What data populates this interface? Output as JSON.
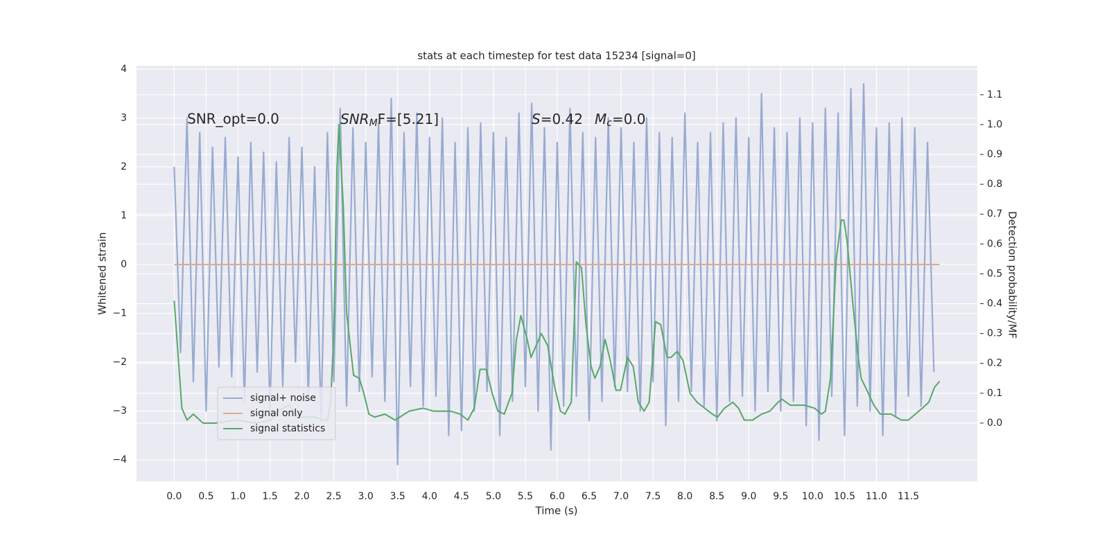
{
  "chart_data": {
    "type": "line",
    "title": "stats at each timestep for test data 15234 [signal=0]",
    "x_label": "Time (s)",
    "y_label": "Whitened strain",
    "y2_label": "Detection probability/MF",
    "annotations": [
      {
        "text": "SNR_opt=0.0"
      },
      {
        "base": "SNR",
        "sub": "M",
        "rest": "F=[5.21]"
      },
      {
        "base": "S",
        "rest": "=0.42"
      },
      {
        "base": "M",
        "sub": "c",
        "rest": "=0.0"
      }
    ],
    "xlim": [
      -0.59,
      12.58
    ],
    "xticks": [
      {
        "value": 0,
        "label": "0.0"
      },
      0.5,
      {
        "value": 1,
        "label": "1.0"
      },
      1.5,
      {
        "value": 2,
        "label": "2.0"
      },
      2.5,
      {
        "value": 3,
        "label": "3.0"
      },
      3.5,
      {
        "value": 4,
        "label": "4.0"
      },
      4.5,
      {
        "value": 5,
        "label": "5.0"
      },
      5.5,
      {
        "value": 6,
        "label": "6.0"
      },
      6.5,
      {
        "value": 7,
        "label": "7.0"
      },
      7.5,
      {
        "value": 8,
        "label": "8.0"
      },
      8.5,
      {
        "value": 9,
        "label": "9.0"
      },
      9.5,
      {
        "value": 10,
        "label": "10.0"
      },
      10.5,
      {
        "value": 11,
        "label": "11.0"
      },
      11.5
    ],
    "ylim": [
      -4.44,
      4.07
    ],
    "yticks": [
      {
        "value": -4,
        "label": "−4"
      },
      {
        "value": -3,
        "label": "−3"
      },
      {
        "value": -2,
        "label": "−2"
      },
      {
        "value": -1,
        "label": "−1"
      },
      0,
      1,
      2,
      3,
      4
    ],
    "y2lim": [
      -0.195,
      1.197
    ],
    "y2ticks": [
      {
        "value": 0,
        "label": "0.0"
      },
      0.1,
      0.2,
      0.3,
      0.4,
      0.5,
      0.6,
      0.7,
      0.8,
      0.9,
      {
        "value": 1,
        "label": "1.0"
      },
      1.1
    ],
    "grid": true,
    "legend": "lower left",
    "series": [
      {
        "name": "signal+ noise",
        "color": "#98abd0",
        "x": [
          0.0,
          0.1,
          0.2,
          0.3,
          0.4,
          0.5,
          0.6,
          0.7,
          0.8,
          0.9,
          1.0,
          1.1,
          1.2,
          1.3,
          1.4,
          1.5,
          1.6,
          1.7,
          1.8,
          1.9,
          2.0,
          2.1,
          2.2,
          2.3,
          2.4,
          2.5,
          2.6,
          2.7,
          2.8,
          2.9,
          3.0,
          3.1,
          3.2,
          3.3,
          3.4,
          3.5,
          3.6,
          3.7,
          3.8,
          3.9,
          4.0,
          4.1,
          4.2,
          4.3,
          4.4,
          4.5,
          4.6,
          4.7,
          4.8,
          4.9,
          5.0,
          5.1,
          5.2,
          5.3,
          5.4,
          5.5,
          5.6,
          5.7,
          5.8,
          5.9,
          6.0,
          6.1,
          6.2,
          6.3,
          6.4,
          6.5,
          6.6,
          6.7,
          6.8,
          6.9,
          7.0,
          7.1,
          7.2,
          7.3,
          7.4,
          7.5,
          7.6,
          7.7,
          7.8,
          7.9,
          8.0,
          8.1,
          8.2,
          8.3,
          8.4,
          8.5,
          8.6,
          8.7,
          8.8,
          8.9,
          9.0,
          9.1,
          9.2,
          9.3,
          9.4,
          9.5,
          9.6,
          9.7,
          9.8,
          9.9,
          10.0,
          10.1,
          10.2,
          10.3,
          10.4,
          10.5,
          10.6,
          10.7,
          10.8,
          10.9,
          11.0,
          11.1,
          11.2,
          11.3,
          11.4,
          11.5,
          11.6,
          11.7,
          11.8,
          11.9
        ],
        "values": [
          2.0,
          -1.8,
          3.0,
          -2.4,
          2.7,
          -3.0,
          2.4,
          -2.1,
          2.6,
          -2.3,
          2.2,
          -2.8,
          2.5,
          -2.2,
          2.3,
          -3.0,
          2.1,
          -2.5,
          2.6,
          -2.0,
          2.4,
          -2.7,
          2.0,
          -3.2,
          2.7,
          -2.4,
          3.2,
          -2.9,
          2.8,
          -2.6,
          2.5,
          -2.3,
          2.9,
          -2.8,
          3.4,
          -4.1,
          2.7,
          -2.5,
          3.1,
          -2.9,
          2.6,
          -2.7,
          3.0,
          -3.5,
          2.5,
          -3.4,
          2.8,
          -3.0,
          2.9,
          -2.6,
          2.7,
          -3.5,
          2.6,
          -2.8,
          3.1,
          -2.5,
          3.3,
          -3.0,
          2.8,
          -3.8,
          2.5,
          -2.9,
          3.2,
          -2.7,
          2.7,
          -3.2,
          2.6,
          -2.8,
          3.0,
          -2.5,
          2.8,
          -2.6,
          2.5,
          -3.0,
          3.0,
          -2.4,
          2.7,
          -3.3,
          2.6,
          -2.8,
          3.1,
          -2.6,
          2.5,
          -2.9,
          2.7,
          -3.2,
          2.9,
          -2.8,
          3.0,
          -2.7,
          2.6,
          -3.0,
          3.5,
          -2.6,
          2.8,
          -3.0,
          2.7,
          -2.8,
          3.0,
          -3.3,
          2.9,
          -3.6,
          3.2,
          -2.7,
          3.1,
          -3.5,
          3.6,
          -2.9,
          3.7,
          -3.0,
          2.8,
          -3.5,
          2.9,
          -3.1,
          3.0,
          -2.7,
          2.8,
          -2.9,
          2.5,
          -2.2
        ]
      },
      {
        "name": "signal only",
        "color": "#e4a88f",
        "x": [
          0.0,
          11.99
        ],
        "values": [
          0,
          0
        ]
      },
      {
        "name": "signal statistics",
        "color": "#55a868",
        "axis": "y2",
        "x": [
          0.0,
          0.05,
          0.12,
          0.2,
          0.3,
          0.45,
          0.64,
          0.97,
          1.29,
          1.51,
          1.62,
          1.71,
          1.8,
          1.94,
          2.02,
          2.21,
          2.33,
          2.4,
          2.45,
          2.5,
          2.55,
          2.58,
          2.65,
          2.7,
          2.81,
          2.9,
          2.97,
          3.05,
          3.14,
          3.3,
          3.46,
          3.68,
          3.9,
          4.06,
          4.33,
          4.48,
          4.6,
          4.7,
          4.79,
          4.89,
          4.98,
          5.07,
          5.17,
          5.29,
          5.36,
          5.43,
          5.53,
          5.59,
          5.69,
          5.75,
          5.85,
          5.96,
          6.05,
          6.12,
          6.22,
          6.3,
          6.38,
          6.45,
          6.53,
          6.59,
          6.67,
          6.75,
          6.83,
          6.92,
          6.99,
          7.1,
          7.19,
          7.27,
          7.36,
          7.44,
          7.54,
          7.62,
          7.72,
          7.78,
          7.88,
          7.97,
          8.08,
          8.19,
          8.43,
          8.51,
          8.62,
          8.75,
          8.84,
          8.93,
          9.06,
          9.2,
          9.33,
          9.46,
          9.52,
          9.65,
          9.87,
          10.03,
          10.14,
          10.2,
          10.28,
          10.37,
          10.45,
          10.49,
          10.54,
          10.63,
          10.71,
          10.76,
          10.85,
          10.96,
          11.06,
          11.23,
          11.39,
          11.5,
          11.61,
          11.72,
          11.82,
          11.91,
          11.99
        ],
        "values": [
          0.41,
          0.26,
          0.05,
          0.01,
          0.03,
          0.0,
          0.0,
          0.01,
          0.0,
          0.01,
          0.04,
          0.05,
          0.06,
          0.02,
          0.02,
          0.02,
          0.01,
          0.01,
          0.07,
          0.3,
          0.86,
          1.0,
          0.72,
          0.37,
          0.16,
          0.15,
          0.1,
          0.03,
          0.02,
          0.03,
          0.01,
          0.04,
          0.05,
          0.04,
          0.04,
          0.03,
          0.01,
          0.05,
          0.18,
          0.18,
          0.1,
          0.04,
          0.03,
          0.1,
          0.28,
          0.36,
          0.28,
          0.22,
          0.27,
          0.3,
          0.26,
          0.12,
          0.04,
          0.03,
          0.07,
          0.54,
          0.52,
          0.33,
          0.19,
          0.15,
          0.19,
          0.28,
          0.21,
          0.11,
          0.11,
          0.22,
          0.19,
          0.07,
          0.04,
          0.07,
          0.34,
          0.33,
          0.22,
          0.22,
          0.24,
          0.21,
          0.1,
          0.07,
          0.03,
          0.02,
          0.05,
          0.07,
          0.05,
          0.01,
          0.01,
          0.03,
          0.04,
          0.07,
          0.08,
          0.06,
          0.06,
          0.05,
          0.03,
          0.04,
          0.15,
          0.55,
          0.68,
          0.68,
          0.61,
          0.4,
          0.23,
          0.15,
          0.11,
          0.06,
          0.03,
          0.03,
          0.01,
          0.01,
          0.03,
          0.05,
          0.07,
          0.12,
          0.14
        ]
      }
    ]
  }
}
